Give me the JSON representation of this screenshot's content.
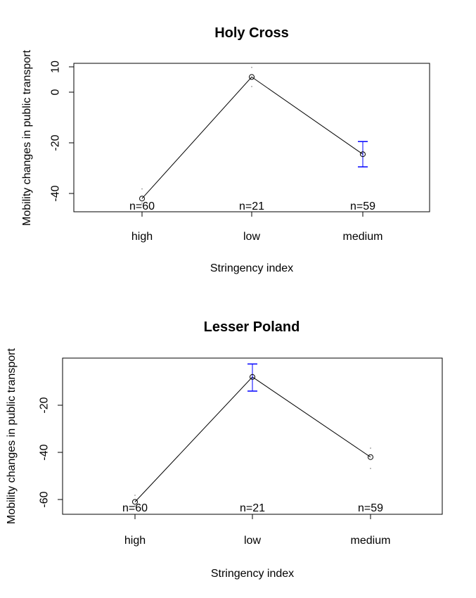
{
  "chart_data": [
    {
      "type": "line",
      "title": "Holy Cross",
      "xlabel": "Stringency index",
      "ylabel": "Mobility changes in public transport",
      "categories": [
        "high",
        "low",
        "medium"
      ],
      "values": [
        -42,
        6,
        -24.5
      ],
      "error_bars": [
        {
          "category": "high",
          "low": -44,
          "high": -38,
          "color": "#000000"
        },
        {
          "category": "low",
          "low": 2,
          "high": 10,
          "color": "#000000"
        },
        {
          "category": "medium",
          "low": -29.5,
          "high": -19.5,
          "color": "#0000ff"
        }
      ],
      "n_labels": [
        "n=60",
        "n=21",
        "n=59"
      ],
      "yticks": [
        "-40",
        "-20",
        "0",
        "10"
      ],
      "ylim": [
        -48,
        12
      ],
      "grid": false,
      "legend": "none"
    },
    {
      "type": "line",
      "title": "Lesser Poland",
      "xlabel": "Stringency index",
      "ylabel": "Mobility changes in public transport",
      "categories": [
        "high",
        "low",
        "medium"
      ],
      "values": [
        -61,
        -8,
        -42
      ],
      "error_bars": [
        {
          "category": "high",
          "low": -63,
          "high": -58,
          "color": "#000000"
        },
        {
          "category": "low",
          "low": -14,
          "high": -2.5,
          "color": "#0000ff"
        },
        {
          "category": "medium",
          "low": -47,
          "high": -38,
          "color": "#000000"
        }
      ],
      "n_labels": [
        "n=60",
        "n=21",
        "n=59"
      ],
      "yticks": [
        "-60",
        "-40",
        "-20"
      ],
      "ylim": [
        -66,
        0
      ],
      "grid": false,
      "legend": "none"
    }
  ]
}
